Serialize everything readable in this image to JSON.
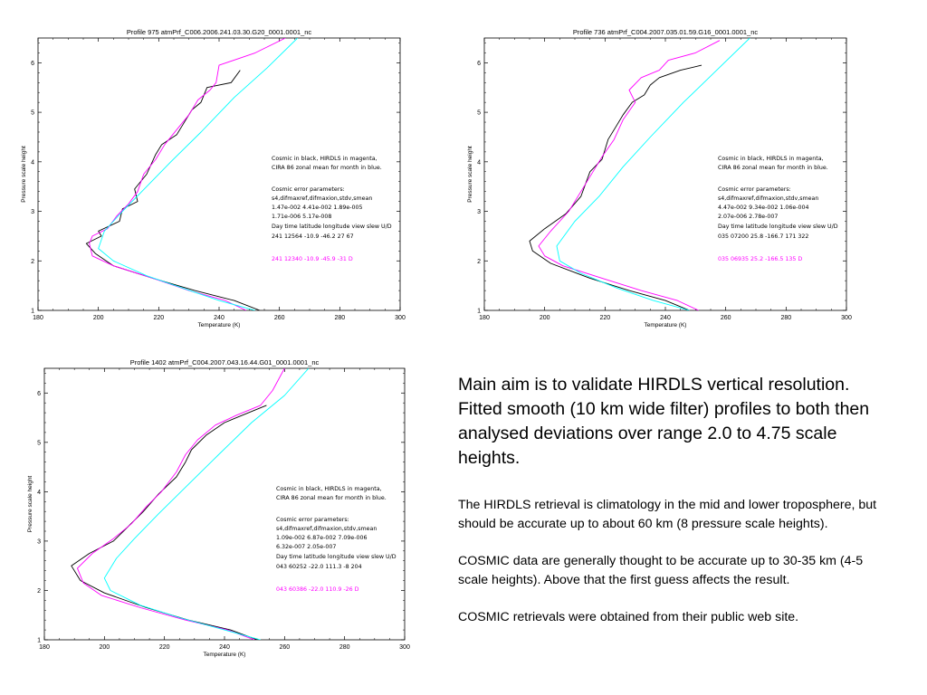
{
  "chart_data": [
    {
      "type": "line",
      "title": "Profile    975  atmPrf_C006.2006.241.03.30.G20_0001.0001_nc",
      "xlabel": "Temperature (K)",
      "ylabel": "Pressure scale height",
      "xlim": [
        180,
        300
      ],
      "ylim": [
        1,
        6.5
      ],
      "xticks": [
        "180",
        "200",
        "220",
        "240",
        "260",
        "280",
        "300"
      ],
      "yticks": [
        "1",
        "2",
        "3",
        "4",
        "5",
        "6"
      ],
      "series": [
        {
          "color": "#000000",
          "points": [
            [
              253.5,
              1
            ],
            [
              245,
              1.2
            ],
            [
              232,
              1.4
            ],
            [
              218,
              1.65
            ],
            [
              205,
              1.9
            ],
            [
              199,
              2.15
            ],
            [
              196,
              2.35
            ],
            [
              201,
              2.5
            ],
            [
              200,
              2.6
            ],
            [
              207,
              2.8
            ],
            [
              208,
              3.05
            ],
            [
              213,
              3.2
            ],
            [
              212,
              3.45
            ],
            [
              216,
              3.75
            ],
            [
              219,
              4.15
            ],
            [
              221,
              4.35
            ],
            [
              226,
              4.55
            ],
            [
              229,
              4.85
            ],
            [
              231,
              5.05
            ],
            [
              234,
              5.2
            ],
            [
              236,
              5.5
            ],
            [
              244,
              5.6
            ],
            [
              247,
              5.85
            ]
          ]
        },
        {
          "color": "#ff00ff",
          "points": [
            [
              249,
              1
            ],
            [
              242,
              1.2
            ],
            [
              230,
              1.4
            ],
            [
              218,
              1.65
            ],
            [
              205,
              1.9
            ],
            [
              198,
              2.1
            ],
            [
              197,
              2.35
            ],
            [
              198,
              2.5
            ],
            [
              203,
              2.65
            ],
            [
              206,
              2.9
            ],
            [
              210,
              3.15
            ],
            [
              213,
              3.4
            ],
            [
              215,
              3.75
            ],
            [
              219,
              4.05
            ],
            [
              222,
              4.35
            ],
            [
              226,
              4.65
            ],
            [
              230,
              4.95
            ],
            [
              233,
              5.25
            ],
            [
              237,
              5.45
            ],
            [
              239,
              5.6
            ],
            [
              240,
              5.95
            ],
            [
              252,
              6.2
            ],
            [
              262,
              6.5
            ]
          ]
        },
        {
          "color": "#00ffff",
          "points": [
            [
              252,
              1
            ],
            [
              240,
              1.2
            ],
            [
              228,
              1.45
            ],
            [
              216,
              1.7
            ],
            [
              205,
              2.0
            ],
            [
              200,
              2.25
            ],
            [
              202,
              2.6
            ],
            [
              208,
              3.0
            ],
            [
              216,
              3.5
            ],
            [
              224,
              4.0
            ],
            [
              234,
              4.6
            ],
            [
              245,
              5.3
            ],
            [
              256,
              5.9
            ],
            [
              266,
              6.5
            ]
          ]
        }
      ],
      "annotations": [
        {
          "text": "Cosmic in black, HIRDLS in magenta,",
          "color": "#000000"
        },
        {
          "text": "CIRA 86 zonal mean for month in blue.",
          "color": "#000000"
        },
        {
          "text": "Cosmic error parameters:",
          "color": "#000000"
        },
        {
          "text": "s4,difmaxref,difmaxion,stdv,smean",
          "color": "#000000"
        },
        {
          "text": " 1.47e-002  4.41e-002  1.89e-005",
          "color": "#000000"
        },
        {
          "text": " 1.71e-006  5.17e-008",
          "color": "#000000"
        },
        {
          "text": "Day time latitude longitude view   slew U/D",
          "color": "#000000"
        },
        {
          "text": "241  12564  -10.9   -46.2    27     67",
          "color": "#000000"
        },
        {
          "text": "241  12340  -10.9   -45.9    -31          D",
          "color": "#ff00ff"
        }
      ]
    },
    {
      "type": "line",
      "title": "Profile    736  atmPrf_C004.2007.035.01.59.G16_0001.0001_nc",
      "xlabel": "Temperature (K)",
      "ylabel": "Pressure scale height",
      "xlim": [
        180,
        300
      ],
      "ylim": [
        1,
        6.5
      ],
      "xticks": [
        "180",
        "200",
        "220",
        "240",
        "260",
        "280",
        "300"
      ],
      "yticks": [
        "1",
        "2",
        "3",
        "4",
        "5",
        "6"
      ],
      "series": [
        {
          "color": "#000000",
          "points": [
            [
              248,
              1
            ],
            [
              240,
              1.2
            ],
            [
              228,
              1.4
            ],
            [
              215,
              1.65
            ],
            [
              202,
              1.95
            ],
            [
              196,
              2.2
            ],
            [
              195,
              2.4
            ],
            [
              200,
              2.65
            ],
            [
              207,
              2.95
            ],
            [
              212,
              3.3
            ],
            [
              215,
              3.8
            ],
            [
              219,
              4.05
            ],
            [
              221,
              4.45
            ],
            [
              224,
              4.75
            ],
            [
              226,
              4.95
            ],
            [
              229,
              5.2
            ],
            [
              233,
              5.35
            ],
            [
              235,
              5.55
            ],
            [
              238,
              5.7
            ],
            [
              245,
              5.85
            ],
            [
              252,
              5.95
            ]
          ]
        },
        {
          "color": "#ff00ff",
          "points": [
            [
              251,
              1
            ],
            [
              244,
              1.2
            ],
            [
              232,
              1.4
            ],
            [
              219,
              1.65
            ],
            [
              206,
              1.9
            ],
            [
              200,
              2.1
            ],
            [
              198,
              2.3
            ],
            [
              202,
              2.6
            ],
            [
              208,
              3.0
            ],
            [
              212,
              3.4
            ],
            [
              216,
              3.8
            ],
            [
              219,
              4.1
            ],
            [
              223,
              4.45
            ],
            [
              226,
              4.85
            ],
            [
              230,
              5.2
            ],
            [
              228,
              5.45
            ],
            [
              232,
              5.7
            ],
            [
              238,
              5.85
            ],
            [
              241,
              6.05
            ],
            [
              250,
              6.2
            ],
            [
              258,
              6.45
            ]
          ]
        },
        {
          "color": "#00ffff",
          "points": [
            [
              248,
              1
            ],
            [
              236,
              1.2
            ],
            [
              224,
              1.45
            ],
            [
              212,
              1.75
            ],
            [
              205,
              2.0
            ],
            [
              204,
              2.3
            ],
            [
              210,
              2.8
            ],
            [
              218,
              3.3
            ],
            [
              226,
              3.9
            ],
            [
              235,
              4.5
            ],
            [
              246,
              5.2
            ],
            [
              257,
              5.85
            ],
            [
              268,
              6.5
            ]
          ]
        }
      ],
      "annotations": [
        {
          "text": "Cosmic in black, HIRDLS in magenta,",
          "color": "#000000"
        },
        {
          "text": "CIRA 86 zonal mean for month in blue.",
          "color": "#000000"
        },
        {
          "text": "Cosmic error parameters:",
          "color": "#000000"
        },
        {
          "text": "s4,difmaxref,difmaxion,stdv,smean",
          "color": "#000000"
        },
        {
          "text": " 4.47e-002  9.34e-002  1.06e-004",
          "color": "#000000"
        },
        {
          "text": " 2.07e-006  2.78e-007",
          "color": "#000000"
        },
        {
          "text": "Day time latitude longitude view   slew U/D",
          "color": "#000000"
        },
        {
          "text": "035  07200   25.8   -166.7   171    322",
          "color": "#000000"
        },
        {
          "text": "035  06935   25.2   -166.5   135          D",
          "color": "#ff00ff"
        }
      ]
    },
    {
      "type": "line",
      "title": "Profile    1402  atmPrf_C004.2007.043.16.44.G01_0001.0001_nc",
      "xlabel": "Temperature (K)",
      "ylabel": "Pressure scale height",
      "xlim": [
        180,
        300
      ],
      "ylim": [
        1,
        6.5
      ],
      "xticks": [
        "180",
        "200",
        "220",
        "240",
        "260",
        "280",
        "300"
      ],
      "yticks": [
        "1",
        "2",
        "3",
        "4",
        "5",
        "6"
      ],
      "series": [
        {
          "color": "#000000",
          "points": [
            [
              251,
              1
            ],
            [
              242,
              1.2
            ],
            [
              228,
              1.4
            ],
            [
              214,
              1.65
            ],
            [
              200,
              1.95
            ],
            [
              192,
              2.2
            ],
            [
              189,
              2.5
            ],
            [
              195,
              2.75
            ],
            [
              203,
              3.0
            ],
            [
              208,
              3.3
            ],
            [
              213,
              3.6
            ],
            [
              218,
              3.95
            ],
            [
              224,
              4.3
            ],
            [
              227,
              4.6
            ],
            [
              229,
              4.85
            ],
            [
              234,
              5.15
            ],
            [
              240,
              5.4
            ],
            [
              248,
              5.6
            ],
            [
              254,
              5.75
            ]
          ]
        },
        {
          "color": "#ff00ff",
          "points": [
            [
              250,
              1
            ],
            [
              241,
              1.2
            ],
            [
              227,
              1.4
            ],
            [
              212,
              1.65
            ],
            [
              199,
              1.9
            ],
            [
              193,
              2.15
            ],
            [
              191,
              2.45
            ],
            [
              196,
              2.75
            ],
            [
              203,
              3.05
            ],
            [
              209,
              3.35
            ],
            [
              214,
              3.7
            ],
            [
              219,
              4.0
            ],
            [
              224,
              4.4
            ],
            [
              227,
              4.75
            ],
            [
              231,
              5.05
            ],
            [
              237,
              5.35
            ],
            [
              244,
              5.55
            ],
            [
              252,
              5.75
            ],
            [
              256,
              6.05
            ],
            [
              260,
              6.5
            ]
          ]
        },
        {
          "color": "#00ffff",
          "points": [
            [
              252,
              1
            ],
            [
              240,
              1.2
            ],
            [
              225,
              1.45
            ],
            [
              212,
              1.7
            ],
            [
              202,
              2.0
            ],
            [
              200,
              2.25
            ],
            [
              204,
              2.65
            ],
            [
              210,
              3.05
            ],
            [
              218,
              3.55
            ],
            [
              228,
              4.15
            ],
            [
              238,
              4.75
            ],
            [
              249,
              5.4
            ],
            [
              260,
              5.95
            ],
            [
              268,
              6.5
            ]
          ]
        }
      ],
      "annotations": [
        {
          "text": "Cosmic in black, HIRDLS in magenta,",
          "color": "#000000"
        },
        {
          "text": "CIRA 86 zonal mean for month in blue.",
          "color": "#000000"
        },
        {
          "text": "Cosmic error parameters:",
          "color": "#000000"
        },
        {
          "text": "s4,difmaxref,difmaxion,stdv,smean",
          "color": "#000000"
        },
        {
          "text": " 1.09e-002  6.87e-002  7.09e-006",
          "color": "#000000"
        },
        {
          "text": " 6.32e-007  2.05e-007",
          "color": "#000000"
        },
        {
          "text": "Day time latitude longitude view   slew U/D",
          "color": "#000000"
        },
        {
          "text": "043  60252  -22.0   111.3    -8     204",
          "color": "#000000"
        },
        {
          "text": "043  60386  -22.0   110.9    -26          D",
          "color": "#ff00ff"
        }
      ]
    }
  ],
  "text_panel": {
    "heading": "Main aim is to validate HIRDLS vertical resolution.  Fitted smooth (10 km wide filter) profiles to both then analysed deviations over range 2.0 to 4.75 scale heights.",
    "paragraphs": [
      "The HIRDLS retrieval is climatology in the mid and lower troposphere, but should be accurate up to about 60 km (8 pressure scale heights).",
      "COSMIC data are generally thought to be accurate up to 30-35 km (4-5 scale heights). Above that the first guess affects the result.",
      "COSMIC retrievals were obtained from their public web site."
    ]
  }
}
